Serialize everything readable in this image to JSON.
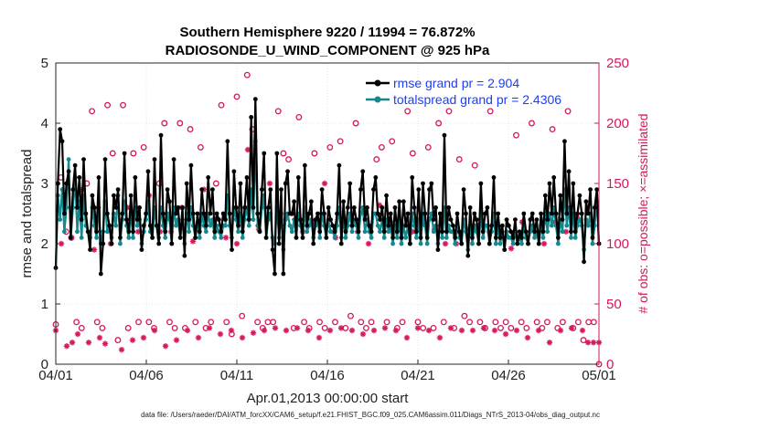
{
  "chart_data": {
    "type": "line",
    "title": [
      "Southern Hemisphere 9220 / 11994 = 76.872%",
      "RADIOSONDE_U_WIND_COMPONENT @ 925 hPa"
    ],
    "xlabel": "Apr.01,2013 00:00:00 start",
    "ylabel": "rmse and totalspread",
    "ylabel_right": "# of obs: o=possible; ×=assimilated",
    "footer": "data file: /Users/raeder/DAI/ATM_forcXX/CAM6_setup/f.e21.FHIST_BGC.f09_025.CAM6assim.011/Diags_NTrS_2013-04/obs_diag_output.nc",
    "x_ticks": [
      "04/01",
      "04/06",
      "04/11",
      "04/16",
      "04/21",
      "04/26",
      "05/01"
    ],
    "xlim": [
      0,
      30
    ],
    "ylim": [
      0,
      5
    ],
    "y_ticks": [
      "0",
      "1",
      "2",
      "3",
      "4",
      "5"
    ],
    "ylim_right": [
      0,
      250
    ],
    "y_ticks_right": [
      "0",
      "50",
      "100",
      "150",
      "200",
      "250"
    ],
    "legend_position": "top-right",
    "series": [
      {
        "name": "rmse grand pr = 2.904",
        "color": "#000000",
        "marker": "dot",
        "values": [
          1.6,
          3.0,
          3.9,
          3.7,
          2.5,
          3.0,
          3.2,
          2.1,
          2.9,
          3.3,
          2.6,
          3.1,
          2.4,
          3.4,
          2.5,
          2.2,
          1.9,
          2.8,
          2.6,
          2.2,
          3.1,
          1.5,
          2.0,
          3.4,
          2.5,
          2.3,
          2.0,
          2.8,
          2.6,
          2.9,
          2.1,
          2.5,
          3.5,
          2.4,
          2.2,
          2.8,
          2.2,
          3.1,
          2.4,
          2.6,
          1.9,
          2.3,
          2.5,
          3.2,
          2.3,
          2.1,
          3.4,
          2.3,
          2.0,
          3.8,
          2.5,
          2.2,
          2.9,
          2.7,
          2.0,
          3.4,
          2.5,
          2.6,
          2.1,
          2.6,
          1.8,
          3.0,
          2.4,
          3.3,
          2.5,
          2.1,
          2.5,
          2.2,
          2.9,
          2.5,
          2.3,
          3.1,
          2.5,
          2.9,
          2.2,
          2.5,
          2.4,
          2.2,
          2.5,
          2.4,
          3.7,
          2.5,
          1.9,
          3.2,
          2.6,
          2.3,
          3.0,
          2.2,
          2.6,
          3.1,
          2.4,
          4.1,
          2.6,
          4.4,
          2.5,
          2.2,
          2.9,
          3.5,
          2.1,
          2.6,
          2.9,
          1.9,
          1.5,
          3.5,
          2.0,
          2.9,
          1.5,
          3.0,
          3.2,
          2.5,
          2.5,
          2.7,
          2.1,
          3.1,
          2.4,
          2.1,
          3.3,
          2.3,
          2.5,
          2.7,
          2.0,
          2.4,
          2.5,
          2.2,
          2.9,
          2.5,
          2.1,
          2.6,
          2.4,
          2.3,
          2.2,
          2.5,
          3.3,
          2.0,
          2.7,
          2.2,
          2.6,
          3.0,
          2.3,
          2.6,
          2.4,
          2.2,
          2.9,
          3.2,
          2.4,
          2.6,
          2.3,
          2.2,
          2.9,
          3.1,
          2.5,
          2.4,
          2.6,
          2.2,
          2.8,
          2.3,
          2.5,
          2.1,
          2.6,
          2.2,
          2.7,
          2.1,
          2.7,
          2.3,
          2.5,
          2.0,
          3.1,
          2.6,
          2.2,
          2.9,
          2.1,
          3.0,
          2.5,
          2.1,
          2.9,
          3.0,
          2.4,
          2.6,
          1.9,
          2.5,
          2.2,
          3.8,
          2.2,
          2.6,
          2.4,
          2.3,
          2.1,
          2.5,
          2.2,
          2.0,
          2.9,
          2.5,
          1.8,
          2.6,
          2.1,
          2.5,
          2.4,
          2.0,
          3.0,
          2.2,
          2.5,
          2.6,
          2.0,
          2.3,
          3.1,
          2.1,
          2.5,
          2.1,
          2.3,
          1.9,
          2.4,
          2.3,
          2.2,
          2.1,
          2.4,
          2.0,
          2.2,
          2.1,
          2.5,
          2.2,
          2.0,
          2.4,
          2.5,
          2.2,
          2.4,
          2.0,
          2.5,
          2.2,
          2.8,
          2.4,
          3.0,
          2.5,
          3.1,
          2.5,
          2.1,
          2.8,
          2.4,
          3.7,
          2.5,
          3.2,
          2.2,
          3.0,
          2.2,
          2.5,
          2.8,
          2.5,
          1.7,
          2.7,
          2.5,
          2.9,
          2.1,
          2.6,
          2.9,
          2.0
        ],
        "style": "line"
      },
      {
        "name": "totalspread grand pr = 2.4306",
        "color": "#15888d",
        "marker": "dot",
        "values": [
          1.6,
          2.8,
          2.4,
          2.9,
          2.2,
          2.6,
          3.4,
          2.1,
          2.6,
          3.1,
          2.2,
          2.7,
          2.1,
          2.8,
          2.3,
          2.2,
          2.1,
          2.6,
          2.3,
          2.1,
          2.6,
          2.0,
          2.2,
          2.7,
          2.2,
          2.3,
          2.1,
          2.5,
          2.3,
          2.8,
          2.0,
          2.4,
          2.7,
          2.3,
          2.1,
          2.5,
          2.1,
          2.6,
          2.3,
          2.4,
          2.0,
          2.2,
          2.4,
          2.7,
          2.2,
          2.1,
          2.6,
          2.3,
          2.1,
          2.6,
          2.3,
          2.1,
          2.5,
          2.4,
          2.0,
          2.6,
          2.3,
          2.4,
          2.1,
          2.4,
          2.0,
          2.5,
          2.2,
          2.6,
          2.3,
          2.1,
          2.3,
          2.1,
          2.5,
          2.3,
          2.2,
          2.5,
          2.3,
          2.4,
          2.1,
          2.3,
          2.2,
          2.1,
          2.3,
          2.3,
          2.8,
          2.3,
          2.1,
          2.6,
          2.4,
          2.2,
          2.5,
          2.1,
          2.4,
          2.6,
          2.3,
          2.9,
          2.4,
          3.7,
          2.3,
          2.2,
          2.6,
          2.8,
          2.1,
          2.4,
          2.5,
          2.1,
          2.0,
          2.6,
          2.1,
          2.5,
          1.9,
          2.4,
          2.5,
          2.3,
          2.2,
          2.4,
          2.1,
          2.5,
          2.3,
          2.1,
          2.6,
          2.2,
          2.3,
          2.4,
          2.1,
          2.3,
          2.4,
          2.1,
          2.5,
          2.3,
          2.1,
          2.4,
          2.2,
          2.2,
          2.1,
          2.3,
          2.6,
          2.1,
          2.4,
          2.1,
          2.3,
          2.5,
          2.2,
          2.4,
          2.3,
          2.1,
          2.5,
          2.6,
          2.2,
          2.4,
          2.2,
          2.1,
          2.5,
          2.5,
          2.3,
          2.2,
          2.4,
          2.1,
          2.4,
          2.2,
          2.3,
          2.0,
          2.3,
          2.1,
          2.4,
          2.0,
          2.3,
          2.1,
          2.3,
          2.0,
          2.5,
          2.3,
          2.1,
          2.4,
          2.0,
          2.5,
          2.3,
          2.0,
          2.4,
          2.5,
          2.2,
          2.3,
          2.0,
          2.3,
          2.1,
          2.6,
          2.1,
          2.3,
          2.2,
          2.2,
          2.0,
          2.3,
          2.1,
          2.0,
          2.4,
          2.2,
          1.9,
          2.3,
          2.0,
          2.3,
          2.2,
          2.0,
          2.5,
          2.1,
          2.3,
          2.3,
          2.0,
          2.2,
          2.5,
          2.0,
          2.3,
          2.0,
          2.2,
          1.9,
          2.2,
          2.1,
          2.1,
          2.0,
          2.2,
          2.0,
          2.1,
          2.0,
          2.3,
          2.1,
          2.0,
          2.2,
          2.3,
          2.1,
          2.2,
          2.0,
          2.3,
          2.1,
          2.5,
          2.2,
          2.5,
          2.3,
          2.6,
          2.3,
          2.0,
          2.4,
          2.2,
          2.9,
          2.3,
          2.6,
          2.1,
          2.5,
          2.1,
          2.3,
          2.4,
          2.3,
          1.9,
          2.4,
          2.3,
          2.5,
          2.0,
          2.3,
          2.7,
          2.0
        ],
        "style": "line"
      },
      {
        "name": "obs possible",
        "color": "#d6175e",
        "marker": "circle",
        "axis": "right",
        "values": [
          33,
          155,
          110,
          105,
          35,
          30,
          150,
          210,
          35,
          30,
          215,
          175,
          20,
          215,
          30,
          175,
          35,
          180,
          35,
          30,
          150,
          200,
          35,
          30,
          200,
          30,
          195,
          35,
          180,
          30,
          35,
          150,
          215,
          35,
          25,
          222,
          40,
          240,
          195,
          35,
          30,
          35,
          35,
          210,
          175,
          170,
          30,
          205,
          35,
          30,
          175,
          35,
          30,
          180,
          35,
          185,
          30,
          40,
          200,
          35,
          30,
          35,
          170,
          180,
          35,
          185,
          30,
          35,
          210,
          175,
          35,
          30,
          180,
          30,
          200,
          35,
          210,
          30,
          170,
          40,
          35,
          165,
          35,
          30,
          210,
          35,
          30,
          35,
          30,
          190,
          35,
          30,
          200,
          35,
          30,
          35,
          195,
          30,
          35,
          210,
          30,
          35,
          20,
          35,
          35,
          0
        ],
        "style": "scatter"
      },
      {
        "name": "obs assimilated",
        "color": "#d6175e",
        "marker": "asterisk",
        "axis": "right",
        "values": [
          28,
          100,
          15,
          18,
          25,
          145,
          18,
          95,
          22,
          17,
          100,
          135,
          12,
          130,
          20,
          110,
          22,
          140,
          28,
          110,
          15,
          110,
          20,
          130,
          28,
          102,
          22,
          145,
          30,
          120,
          25,
          105,
          28,
          100,
          22,
          178,
          26,
          112,
          28,
          150,
          30,
          115,
          28,
          125,
          30,
          110,
          28,
          118,
          22,
          150,
          28,
          105,
          30,
          115,
          28,
          110,
          25,
          100,
          28,
          132,
          30,
          118,
          28,
          116,
          22,
          110,
          30,
          118,
          28,
          112,
          22,
          100,
          30,
          100,
          28,
          112,
          28,
          115,
          30,
          110,
          28,
          112,
          25,
          96,
          28,
          118,
          22,
          112,
          28,
          100,
          18,
          118,
          28,
          110,
          30,
          122,
          28,
          18,
          18,
          18
        ],
        "style": "scatter"
      }
    ]
  }
}
